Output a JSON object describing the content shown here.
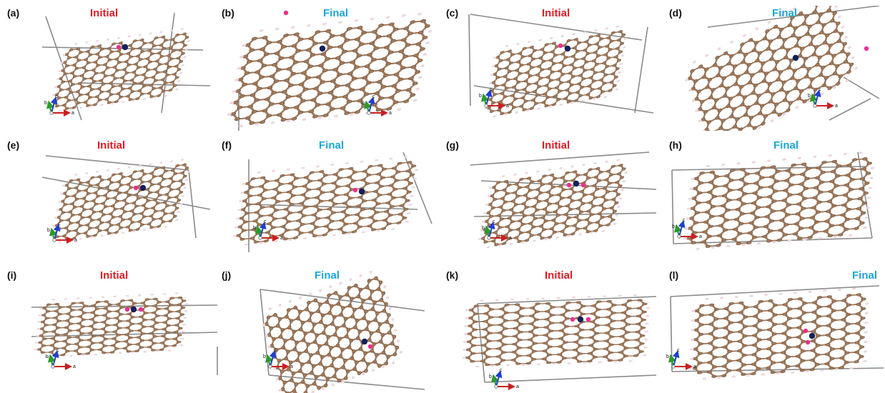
{
  "colors": {
    "initial": "#e31b23",
    "final": "#1aa7d9",
    "carbon": "#a07a5c",
    "carbon_dark": "#6d4e38",
    "hydrogen": "#ecd7de",
    "cell": "#8a8a8a",
    "pink_atom": "#ec2f8c",
    "navy_atom": "#14205a",
    "axis_a": "#cc1f1f",
    "axis_b": "#2a9a2a",
    "axis_c": "#1f3fcc"
  },
  "axis_letters": {
    "a": "a",
    "b": "b",
    "c": "c"
  },
  "panels": [
    {
      "label": "(a)",
      "title": "Initial",
      "kind": "initial"
    },
    {
      "label": "(b)",
      "title": "Final",
      "kind": "final"
    },
    {
      "label": "(c)",
      "title": "Initial",
      "kind": "initial"
    },
    {
      "label": "(d)",
      "title": "Final",
      "kind": "final"
    },
    {
      "label": "(e)",
      "title": "Initial",
      "kind": "initial"
    },
    {
      "label": "(f)",
      "title": "Final",
      "kind": "final"
    },
    {
      "label": "(g)",
      "title": "Initial",
      "kind": "initial"
    },
    {
      "label": "(h)",
      "title": "Final",
      "kind": "final"
    },
    {
      "label": "(i)",
      "title": "Initial",
      "kind": "initial"
    },
    {
      "label": "(j)",
      "title": "Final",
      "kind": "final"
    },
    {
      "label": "(k)",
      "title": "Initial",
      "kind": "initial"
    },
    {
      "label": "(l)",
      "title": "Final",
      "kind": "final"
    }
  ]
}
